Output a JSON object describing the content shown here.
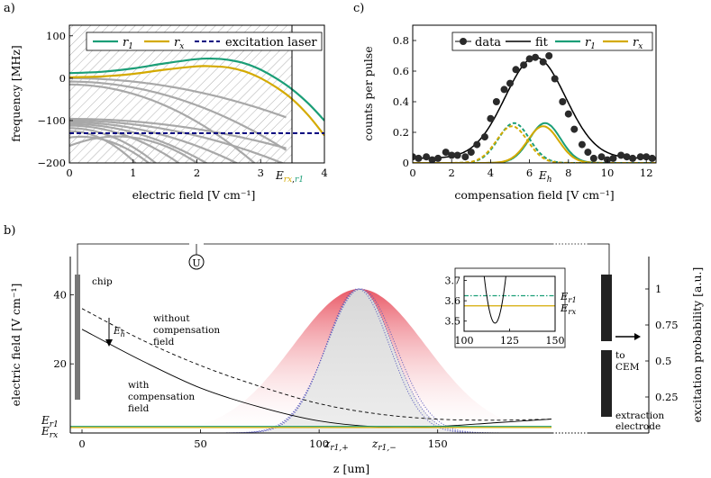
{
  "colors": {
    "r1": "#1b9e77",
    "rx": "#d4aa00",
    "laser": "#000080",
    "grey": "#a8a8a8",
    "detection": "#5555bb",
    "excitation": "#e05060"
  },
  "panel_labels": {
    "a": "a)",
    "b": "b)",
    "c": "c)"
  },
  "chart_data": [
    {
      "id": "a",
      "type": "line",
      "xlabel": "electric field [V cm⁻¹]",
      "ylabel": "frequency [MHz]",
      "xlim": [
        0,
        4
      ],
      "ylim": [
        -200,
        125
      ],
      "xticks": [
        "0",
        "1",
        "2",
        "3",
        "4"
      ],
      "yticks": [
        "100",
        "0",
        "−100",
        "−200"
      ],
      "ytick_values": [
        100,
        0,
        -100,
        -200
      ],
      "marker_label": "E",
      "marker_sub_rx": "rx",
      "marker_sub_r1": "r1",
      "marker_x": 3.43,
      "hatched_region": [
        0,
        3.43
      ],
      "legend": [
        "r1",
        "rx",
        "excitation laser"
      ],
      "series": [
        {
          "name": "r1",
          "x": [
            0,
            0.5,
            1,
            1.5,
            2,
            2.25,
            2.5,
            2.75,
            3,
            3.25,
            3.5,
            3.75,
            4
          ],
          "values": [
            12,
            15,
            23,
            35,
            45,
            46,
            43,
            35,
            20,
            -1,
            -27,
            -60,
            -100
          ]
        },
        {
          "name": "rx",
          "x": [
            0,
            0.5,
            1,
            1.5,
            2,
            2.25,
            2.5,
            2.75,
            3,
            3.25,
            3.5,
            3.75,
            4
          ],
          "values": [
            2,
            4,
            10,
            20,
            28,
            28,
            25,
            16,
            0,
            -22,
            -50,
            -88,
            -135
          ]
        },
        {
          "name": "excitation laser",
          "x": [
            0,
            4
          ],
          "values": [
            -130,
            -130
          ]
        }
      ]
    },
    {
      "id": "c",
      "type": "scatter",
      "xlabel": "compensation field [V cm⁻¹]",
      "ylabel": "counts per pulse",
      "xlim": [
        0,
        12.5
      ],
      "ylim": [
        0,
        0.9
      ],
      "xticks": [
        "0",
        "2",
        "4",
        "6",
        "8",
        "10",
        "12"
      ],
      "yticks": [
        "0",
        "0.2",
        "0.4",
        "0.6",
        "0.8"
      ],
      "ytick_values": [
        0,
        0.2,
        0.4,
        0.6,
        0.8
      ],
      "marker_label": "E",
      "marker_sub": "h",
      "marker_x": 6.5,
      "legend": [
        "data",
        "fit",
        "r1",
        "rx"
      ],
      "data_points": {
        "x": [
          0.0,
          0.3,
          0.7,
          1.0,
          1.3,
          1.7,
          2.0,
          2.3,
          2.7,
          3.0,
          3.3,
          3.7,
          4.0,
          4.3,
          4.7,
          5.0,
          5.3,
          5.7,
          6.0,
          6.3,
          6.7,
          7.0,
          7.3,
          7.7,
          8.0,
          8.3,
          8.7,
          9.0,
          9.3,
          9.7,
          10.0,
          10.3,
          10.7,
          11.0,
          11.3,
          11.7,
          12.0,
          12.3
        ],
        "y": [
          0.04,
          0.03,
          0.04,
          0.02,
          0.03,
          0.07,
          0.05,
          0.05,
          0.04,
          0.07,
          0.12,
          0.17,
          0.29,
          0.4,
          0.48,
          0.52,
          0.61,
          0.64,
          0.68,
          0.69,
          0.66,
          0.7,
          0.55,
          0.4,
          0.32,
          0.22,
          0.12,
          0.07,
          0.03,
          0.04,
          0.02,
          0.03,
          0.05,
          0.04,
          0.03,
          0.04,
          0.04,
          0.03
        ]
      },
      "fit_curve": {
        "type": "gaussian",
        "amplitude": 0.66,
        "center": 6.3,
        "sigma": 1.55,
        "baseline": 0.03
      },
      "component_curves": [
        {
          "name": "r1",
          "style": "solid",
          "center": 6.8,
          "amplitude": 0.26,
          "sigma": 0.8
        },
        {
          "name": "rx",
          "style": "solid",
          "center": 6.7,
          "amplitude": 0.24,
          "sigma": 0.8
        },
        {
          "name": "r1",
          "style": "dashed",
          "center": 5.2,
          "amplitude": 0.26,
          "sigma": 0.8
        },
        {
          "name": "rx",
          "style": "dashed",
          "center": 5.1,
          "amplitude": 0.24,
          "sigma": 0.8
        }
      ]
    },
    {
      "id": "b",
      "type": "line",
      "xlabel": "z [um]",
      "ylabel": "electric field [V cm⁻¹]",
      "y2label": "excitation probability [a.u.]",
      "xlim": [
        -5,
        200
      ],
      "ylim": [
        0,
        50
      ],
      "y2lim": [
        0,
        1.2
      ],
      "xticks": [
        "0",
        "50",
        "100",
        "150"
      ],
      "yticks": [
        "20",
        "40"
      ],
      "ytick_values": [
        20,
        40
      ],
      "y2ticks": [
        "0.25",
        "0.5",
        "0.75",
        "1"
      ],
      "y2tick_values": [
        0.25,
        0.5,
        0.75,
        1
      ],
      "series": [
        {
          "name": "without compensation field",
          "style": "dashed",
          "x": [
            0,
            25,
            50,
            75,
            100,
            125,
            150,
            175,
            198
          ],
          "values": [
            36,
            27,
            19.5,
            13.5,
            8.5,
            5.5,
            4,
            3.7,
            4
          ]
        },
        {
          "name": "with compensation field",
          "style": "solid",
          "x": [
            0,
            25,
            50,
            75,
            100,
            125,
            150,
            175,
            198
          ],
          "values": [
            30,
            21,
            13,
            7.5,
            3.5,
            1.8,
            1.9,
            3,
            4
          ]
        },
        {
          "name": "E_r1",
          "style": "solid",
          "x": [
            -5,
            198
          ],
          "values": [
            1.9,
            1.9
          ]
        },
        {
          "name": "E_rx",
          "style": "solid",
          "x": [
            -5,
            198
          ],
          "values": [
            1.6,
            1.6
          ]
        }
      ],
      "profiles": [
        {
          "name": "excitation profile",
          "center": 117,
          "sigma": 28,
          "peak": 1.0
        },
        {
          "name": "detection profile",
          "center": 117,
          "sigma": 14,
          "peak": 1.0
        }
      ],
      "z_markers": [
        {
          "label": "z",
          "sub": "r1,+",
          "x": 106
        },
        {
          "label": "z",
          "sub": "r1,−",
          "x": 128
        }
      ],
      "inset": {
        "xlim": [
          100,
          150
        ],
        "ylim": [
          3.45,
          3.72
        ],
        "xticks": [
          "100",
          "125",
          "150"
        ],
        "yticks": [
          "3.7",
          "3.6",
          "3.5"
        ],
        "ytick_values": [
          3.7,
          3.6,
          3.5
        ],
        "parabola": {
          "vertex_x": 117,
          "vertex_y": 3.49,
          "k": 0.0065
        },
        "lines": [
          {
            "name": "E_r1",
            "value": 3.625,
            "style": "dashdot"
          },
          {
            "name": "E_rx",
            "value": 3.575,
            "style": "solid"
          }
        ]
      }
    }
  ],
  "panel_b_text": {
    "chip": "chip",
    "without": [
      "without",
      "compensation",
      "field"
    ],
    "with": [
      "with",
      "compensation",
      "field"
    ],
    "eh_label": "E",
    "eh_sub": "h",
    "to_cem": [
      "to",
      "CEM"
    ],
    "extraction": [
      "extraction",
      "electrode"
    ],
    "voltage_source": "U",
    "er1_label": "E",
    "er1_sub": "r1",
    "erx_label": "E",
    "erx_sub": "rx"
  }
}
